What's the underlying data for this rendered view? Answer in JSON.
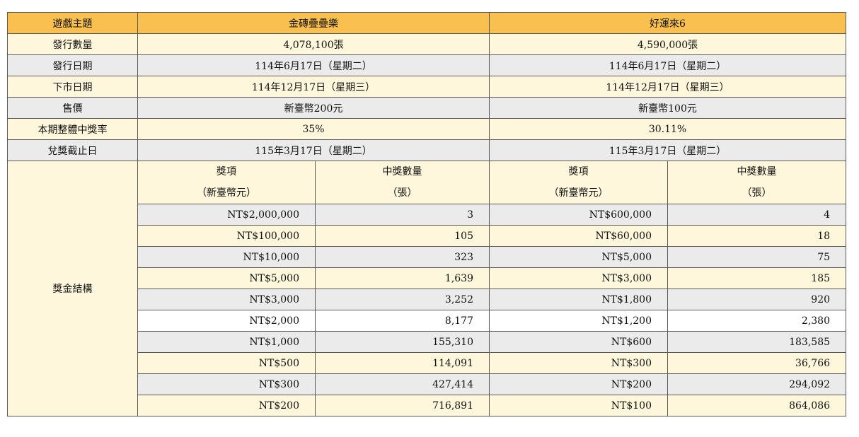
{
  "header": {
    "label": "遊戲主題",
    "game1": "金磚疊疊樂",
    "game2": "好運來6"
  },
  "info_rows": [
    {
      "label": "發行數量",
      "game1": "4,078,100張",
      "game2": "4,590,000張"
    },
    {
      "label": "發行日期",
      "game1": "114年6月17日（星期二）",
      "game2": "114年6月17日（星期二）"
    },
    {
      "label": "下市日期",
      "game1": "114年12月17日（星期三）",
      "game2": "114年12月17日（星期三）"
    },
    {
      "label": "售價",
      "game1": "新臺幣200元",
      "game2": "新臺幣100元"
    },
    {
      "label": "本期整體中獎率",
      "game1": "35%",
      "game2": "30.11%"
    },
    {
      "label": "兌獎截止日",
      "game1": "115年3月17日（星期二）",
      "game2": "115年3月17日（星期二）"
    }
  ],
  "prize_structure": {
    "label": "獎金結構",
    "col_prize": {
      "line1": "獎項",
      "line2": "（新臺幣元）"
    },
    "col_count": {
      "line1": "中獎數量",
      "line2": "（張）"
    },
    "rows": [
      {
        "p1": "NT$2,000,000",
        "c1": "3",
        "p2": "NT$600,000",
        "c2": "4"
      },
      {
        "p1": "NT$100,000",
        "c1": "105",
        "p2": "NT$60,000",
        "c2": "18"
      },
      {
        "p1": "NT$10,000",
        "c1": "323",
        "p2": "NT$5,000",
        "c2": "75"
      },
      {
        "p1": "NT$5,000",
        "c1": "1,639",
        "p2": "NT$3,000",
        "c2": "185"
      },
      {
        "p1": "NT$3,000",
        "c1": "3,252",
        "p2": "NT$1,800",
        "c2": "920"
      },
      {
        "p1": "NT$2,000",
        "c1": "8,177",
        "p2": "NT$1,200",
        "c2": "2,380"
      },
      {
        "p1": "NT$1,000",
        "c1": "155,310",
        "p2": "NT$600",
        "c2": "183,585"
      },
      {
        "p1": "NT$500",
        "c1": "114,091",
        "p2": "NT$300",
        "c2": "36,766"
      },
      {
        "p1": "NT$300",
        "c1": "427,414",
        "p2": "NT$200",
        "c2": "294,092"
      },
      {
        "p1": "NT$200",
        "c1": "716,891",
        "p2": "NT$100",
        "c2": "864,086"
      }
    ]
  },
  "colors": {
    "header": "#f9bf4f",
    "light_yellow": "#fff7dc",
    "light_gray": "#ebebeb"
  }
}
